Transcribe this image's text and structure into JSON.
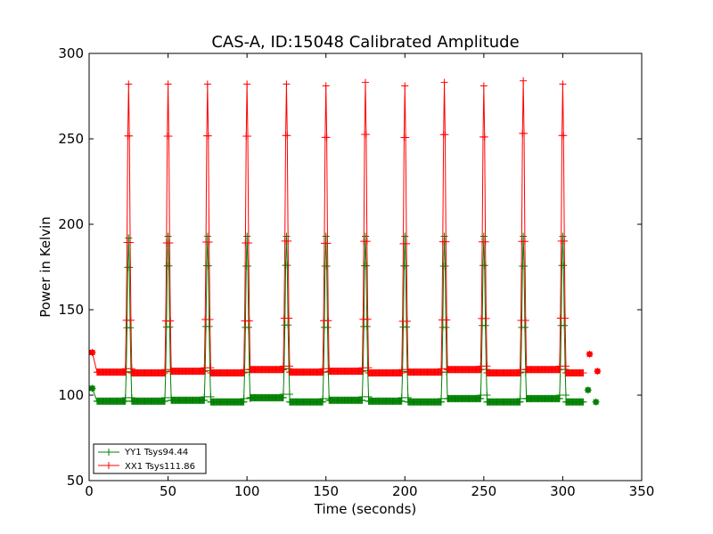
{
  "chart_data": {
    "type": "line",
    "title": "CAS-A, ID:15048 Calibrated Amplitude",
    "xlabel": "Time (seconds)",
    "ylabel": "Power in Kelvin",
    "xlim": [
      0,
      350
    ],
    "ylim": [
      50,
      300
    ],
    "xticks": [
      0,
      50,
      100,
      150,
      200,
      250,
      300,
      350
    ],
    "yticks": [
      50,
      100,
      150,
      200,
      250,
      300
    ],
    "grid": false,
    "legend": {
      "placement": "lower-left"
    },
    "marker": "plus",
    "series": [
      {
        "name": "YY1 Tsys94.44",
        "color": "#008000",
        "start_point": [
          2,
          104
        ],
        "baseline": 96.5,
        "baseline_segments": [
          {
            "from": 5,
            "to": 23,
            "level": 96.5
          },
          {
            "from": 27,
            "to": 48,
            "level": 96.5
          },
          {
            "from": 52,
            "to": 73,
            "level": 97
          },
          {
            "from": 77,
            "to": 98,
            "level": 96
          },
          {
            "from": 102,
            "to": 123,
            "level": 98.5
          },
          {
            "from": 127,
            "to": 148,
            "level": 96
          },
          {
            "from": 152,
            "to": 173,
            "level": 97
          },
          {
            "from": 177,
            "to": 198,
            "level": 96.5
          },
          {
            "from": 202,
            "to": 223,
            "level": 96
          },
          {
            "from": 227,
            "to": 248,
            "level": 98
          },
          {
            "from": 252,
            "to": 273,
            "level": 96
          },
          {
            "from": 277,
            "to": 298,
            "level": 98
          },
          {
            "from": 302,
            "to": 313,
            "level": 96
          }
        ],
        "peaks": [
          {
            "x": 25,
            "y": 192
          },
          {
            "x": 50,
            "y": 193
          },
          {
            "x": 75,
            "y": 193
          },
          {
            "x": 100,
            "y": 193
          },
          {
            "x": 125,
            "y": 193
          },
          {
            "x": 150,
            "y": 193
          },
          {
            "x": 175,
            "y": 193
          },
          {
            "x": 200,
            "y": 193
          },
          {
            "x": 225,
            "y": 193
          },
          {
            "x": 250,
            "y": 193
          },
          {
            "x": 275,
            "y": 193
          },
          {
            "x": 300,
            "y": 193
          }
        ],
        "tail_points": [
          [
            316,
            103
          ],
          [
            321,
            96
          ]
        ]
      },
      {
        "name": "XX1 Tsys111.86",
        "color": "#ff0000",
        "start_point": [
          2,
          125
        ],
        "baseline": 113.5,
        "baseline_segments": [
          {
            "from": 5,
            "to": 23,
            "level": 113.5
          },
          {
            "from": 27,
            "to": 48,
            "level": 113
          },
          {
            "from": 52,
            "to": 73,
            "level": 114
          },
          {
            "from": 77,
            "to": 98,
            "level": 113
          },
          {
            "from": 102,
            "to": 123,
            "level": 115
          },
          {
            "from": 127,
            "to": 148,
            "level": 113.5
          },
          {
            "from": 152,
            "to": 173,
            "level": 114
          },
          {
            "from": 177,
            "to": 198,
            "level": 113
          },
          {
            "from": 202,
            "to": 223,
            "level": 113.5
          },
          {
            "from": 227,
            "to": 248,
            "level": 115
          },
          {
            "from": 252,
            "to": 273,
            "level": 113
          },
          {
            "from": 277,
            "to": 298,
            "level": 115
          },
          {
            "from": 302,
            "to": 313,
            "level": 113
          }
        ],
        "peaks": [
          {
            "x": 25,
            "y": 282
          },
          {
            "x": 50,
            "y": 282
          },
          {
            "x": 75,
            "y": 282
          },
          {
            "x": 100,
            "y": 282
          },
          {
            "x": 125,
            "y": 282
          },
          {
            "x": 150,
            "y": 281
          },
          {
            "x": 175,
            "y": 283
          },
          {
            "x": 200,
            "y": 281
          },
          {
            "x": 225,
            "y": 283
          },
          {
            "x": 250,
            "y": 281
          },
          {
            "x": 275,
            "y": 284
          },
          {
            "x": 300,
            "y": 282
          }
        ],
        "tail_points": [
          [
            317,
            124
          ],
          [
            322,
            114
          ]
        ]
      }
    ]
  }
}
